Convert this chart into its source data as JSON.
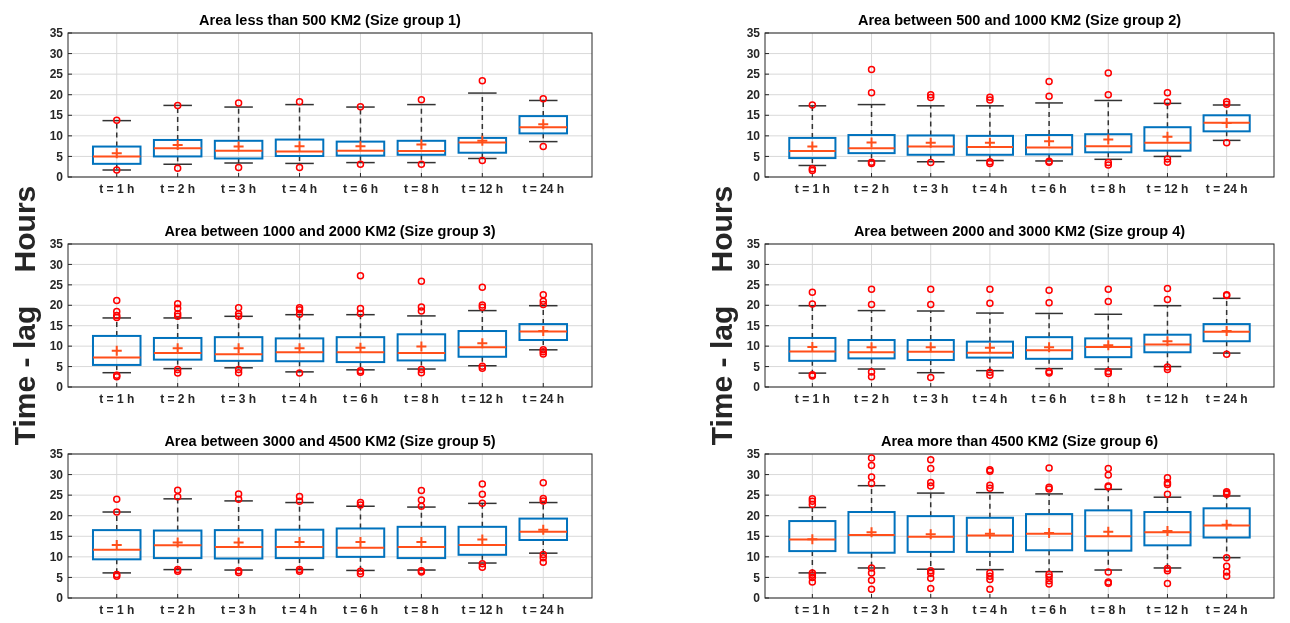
{
  "chart_data": [
    {
      "type": "box",
      "title": "Area less than 500 KM2  (Size group 1)",
      "categories": [
        "t = 1 h",
        "t = 2 h",
        "t = 3 h",
        "t = 4 h",
        "t = 6 h",
        "t = 8 h",
        "t = 12 h",
        "t = 24 h"
      ],
      "ylim": [
        0,
        35
      ],
      "yticks": [
        0,
        5,
        10,
        15,
        20,
        25,
        30,
        35
      ],
      "grid": true,
      "boxes": [
        {
          "low": 1.7,
          "q1": 3.2,
          "median": 5.0,
          "q3": 7.4,
          "high": 13.7,
          "mean": 5.8,
          "outliers": [
            13.8,
            1.7
          ]
        },
        {
          "low": 3.1,
          "q1": 5.0,
          "median": 7.0,
          "q3": 9.0,
          "high": 17.4,
          "mean": 7.8,
          "outliers": [
            17.4,
            2.1
          ]
        },
        {
          "low": 3.4,
          "q1": 4.5,
          "median": 6.4,
          "q3": 8.8,
          "high": 17.0,
          "mean": 7.4,
          "outliers": [
            18.0,
            2.3
          ]
        },
        {
          "low": 3.3,
          "q1": 5.1,
          "median": 6.2,
          "q3": 9.1,
          "high": 17.6,
          "mean": 7.5,
          "outliers": [
            18.3,
            2.3
          ]
        },
        {
          "low": 3.5,
          "q1": 5.2,
          "median": 6.4,
          "q3": 8.6,
          "high": 17.0,
          "mean": 7.5,
          "outliers": [
            17.1,
            3.1
          ]
        },
        {
          "low": 3.5,
          "q1": 5.4,
          "median": 6.3,
          "q3": 8.8,
          "high": 17.6,
          "mean": 7.9,
          "outliers": [
            18.8,
            3.1
          ]
        },
        {
          "low": 4.5,
          "q1": 5.9,
          "median": 8.4,
          "q3": 9.5,
          "high": 20.4,
          "mean": 8.8,
          "outliers": [
            23.4,
            4.0
          ]
        },
        {
          "low": 8.6,
          "q1": 10.6,
          "median": 12.1,
          "q3": 14.8,
          "high": 18.6,
          "mean": 12.8,
          "outliers": [
            19.0,
            7.4
          ]
        }
      ]
    },
    {
      "type": "box",
      "title": "Area between 500 and 1000 KM2  (Size group 2)",
      "categories": [
        "t = 1 h",
        "t = 2 h",
        "t = 3 h",
        "t = 4 h",
        "t = 6 h",
        "t = 8 h",
        "t = 12 h",
        "t = 24 h"
      ],
      "ylim": [
        0,
        35
      ],
      "yticks": [
        0,
        5,
        10,
        15,
        20,
        25,
        30,
        35
      ],
      "grid": true,
      "boxes": [
        {
          "low": 2.8,
          "q1": 4.6,
          "median": 6.3,
          "q3": 9.5,
          "high": 17.3,
          "mean": 7.4,
          "outliers": [
            17.5,
            2.0,
            1.6
          ]
        },
        {
          "low": 3.9,
          "q1": 5.8,
          "median": 7.0,
          "q3": 10.2,
          "high": 17.6,
          "mean": 8.4,
          "outliers": [
            26.1,
            20.5,
            3.6,
            3.3
          ]
        },
        {
          "low": 3.7,
          "q1": 5.4,
          "median": 7.4,
          "q3": 10.1,
          "high": 17.3,
          "mean": 8.3,
          "outliers": [
            20.0,
            19.3,
            3.5
          ]
        },
        {
          "low": 4.0,
          "q1": 5.4,
          "median": 7.3,
          "q3": 10.0,
          "high": 17.3,
          "mean": 8.3,
          "outliers": [
            19.4,
            18.7,
            3.7,
            3.3
          ]
        },
        {
          "low": 3.9,
          "q1": 5.5,
          "median": 7.2,
          "q3": 10.2,
          "high": 18.0,
          "mean": 8.7,
          "outliers": [
            23.2,
            19.6,
            3.8,
            3.6
          ]
        },
        {
          "low": 4.3,
          "q1": 6.0,
          "median": 7.5,
          "q3": 10.4,
          "high": 18.6,
          "mean": 9.1,
          "outliers": [
            25.3,
            20.0,
            3.5,
            2.9
          ]
        },
        {
          "low": 5.0,
          "q1": 6.4,
          "median": 8.3,
          "q3": 12.1,
          "high": 17.9,
          "mean": 9.8,
          "outliers": [
            20.5,
            18.2,
            4.4,
            3.6
          ]
        },
        {
          "low": 8.9,
          "q1": 11.1,
          "median": 13.2,
          "q3": 15.0,
          "high": 17.5,
          "mean": 13.1,
          "outliers": [
            18.3,
            17.7,
            8.3
          ]
        }
      ]
    },
    {
      "type": "box",
      "title": "Area between 1000 and 2000 KM2  (Size group 3)",
      "ylabel": "Time - lag    Hours",
      "categories": [
        "t = 1 h",
        "t = 2 h",
        "t = 3 h",
        "t = 4 h",
        "t = 6 h",
        "t = 8 h",
        "t = 12 h",
        "t = 24 h"
      ],
      "ylim": [
        0,
        35
      ],
      "yticks": [
        0,
        5,
        10,
        15,
        20,
        25,
        30,
        35
      ],
      "grid": true,
      "boxes": [
        {
          "low": 3.5,
          "q1": 5.4,
          "median": 7.2,
          "q3": 12.5,
          "high": 16.9,
          "mean": 8.9,
          "outliers": [
            21.2,
            18.5,
            17.5,
            17.0,
            2.9,
            2.5
          ]
        },
        {
          "low": 4.5,
          "q1": 6.7,
          "median": 8.3,
          "q3": 12.0,
          "high": 16.9,
          "mean": 9.5,
          "outliers": [
            20.4,
            19.3,
            17.9,
            17.3,
            4.3,
            3.4
          ]
        },
        {
          "low": 4.7,
          "q1": 6.4,
          "median": 8.0,
          "q3": 12.2,
          "high": 17.3,
          "mean": 9.5,
          "outliers": [
            19.4,
            17.9,
            17.3,
            4.3,
            3.5
          ]
        },
        {
          "low": 3.7,
          "q1": 6.3,
          "median": 8.5,
          "q3": 11.9,
          "high": 17.7,
          "mean": 9.5,
          "outliers": [
            19.4,
            18.9,
            17.8,
            3.4
          ]
        },
        {
          "low": 4.2,
          "q1": 6.1,
          "median": 8.5,
          "q3": 12.2,
          "high": 17.7,
          "mean": 9.6,
          "outliers": [
            27.2,
            19.2,
            18.0,
            4.0,
            3.6
          ]
        },
        {
          "low": 4.4,
          "q1": 6.5,
          "median": 8.3,
          "q3": 12.9,
          "high": 17.4,
          "mean": 9.9,
          "outliers": [
            25.9,
            19.6,
            18.6,
            4.3,
            3.5
          ]
        },
        {
          "low": 5.2,
          "q1": 7.4,
          "median": 9.7,
          "q3": 13.7,
          "high": 18.7,
          "mean": 10.7,
          "outliers": [
            24.4,
            20.1,
            19.5,
            5.1,
            4.6
          ]
        },
        {
          "low": 9.1,
          "q1": 11.5,
          "median": 13.6,
          "q3": 15.4,
          "high": 19.9,
          "mean": 13.7,
          "outliers": [
            22.6,
            21.0,
            20.2,
            9.1,
            8.6,
            8.1
          ]
        }
      ]
    },
    {
      "type": "box",
      "title": "Area between 2000 and 3000 KM2  (Size group 4)",
      "ylabel": "Time - lag    Hours",
      "categories": [
        "t = 1 h",
        "t = 2 h",
        "t = 3 h",
        "t = 4 h",
        "t = 6 h",
        "t = 8 h",
        "t = 12 h",
        "t = 24 h"
      ],
      "ylim": [
        0,
        35
      ],
      "yticks": [
        0,
        5,
        10,
        15,
        20,
        25,
        30,
        35
      ],
      "grid": true,
      "boxes": [
        {
          "low": 3.4,
          "q1": 6.4,
          "median": 8.7,
          "q3": 12.0,
          "high": 19.9,
          "mean": 9.8,
          "outliers": [
            23.2,
            20.3,
            3.0,
            2.7
          ]
        },
        {
          "low": 4.4,
          "q1": 7.0,
          "median": 8.5,
          "q3": 11.5,
          "high": 18.7,
          "mean": 9.7,
          "outliers": [
            23.9,
            20.2,
            3.7,
            2.5
          ]
        },
        {
          "low": 3.5,
          "q1": 6.6,
          "median": 8.6,
          "q3": 11.5,
          "high": 18.6,
          "mean": 9.7,
          "outliers": [
            23.9,
            20.2,
            2.3
          ]
        },
        {
          "low": 4.0,
          "q1": 7.2,
          "median": 8.4,
          "q3": 11.1,
          "high": 18.1,
          "mean": 9.6,
          "outliers": [
            23.9,
            20.5,
            3.6,
            2.9
          ]
        },
        {
          "low": 4.5,
          "q1": 6.9,
          "median": 9.0,
          "q3": 12.2,
          "high": 18.0,
          "mean": 9.7,
          "outliers": [
            23.7,
            20.6,
            3.8,
            3.4
          ]
        },
        {
          "low": 4.4,
          "q1": 7.3,
          "median": 9.8,
          "q3": 11.9,
          "high": 17.8,
          "mean": 10.2,
          "outliers": [
            23.9,
            20.9,
            3.8,
            3.3
          ]
        },
        {
          "low": 5.0,
          "q1": 8.5,
          "median": 10.4,
          "q3": 12.8,
          "high": 19.9,
          "mean": 11.2,
          "outliers": [
            24.1,
            21.4,
            4.9,
            4.3
          ]
        },
        {
          "low": 8.3,
          "q1": 11.2,
          "median": 13.5,
          "q3": 15.4,
          "high": 21.7,
          "mean": 13.7,
          "outliers": [
            22.6,
            22.4,
            8.0
          ]
        }
      ]
    },
    {
      "type": "box",
      "title": "Area between 3000 and 4500 KM2  (Size group 5)",
      "categories": [
        "t = 1 h",
        "t = 2 h",
        "t = 3 h",
        "t = 4 h",
        "t = 6 h",
        "t = 8 h",
        "t = 12 h",
        "t = 24 h"
      ],
      "ylim": [
        0,
        35
      ],
      "yticks": [
        0,
        5,
        10,
        15,
        20,
        25,
        30,
        35
      ],
      "grid": true,
      "boxes": [
        {
          "low": 6.1,
          "q1": 9.4,
          "median": 11.7,
          "q3": 16.5,
          "high": 20.9,
          "mean": 12.9,
          "outliers": [
            24.0,
            20.9,
            5.7,
            5.3
          ]
        },
        {
          "low": 6.9,
          "q1": 9.7,
          "median": 12.8,
          "q3": 16.4,
          "high": 24.1,
          "mean": 13.5,
          "outliers": [
            26.2,
            24.6,
            6.9,
            6.5
          ]
        },
        {
          "low": 6.8,
          "q1": 9.6,
          "median": 12.4,
          "q3": 16.5,
          "high": 23.6,
          "mean": 13.5,
          "outliers": [
            25.3,
            24.0,
            6.6,
            6.2
          ]
        },
        {
          "low": 6.9,
          "q1": 9.7,
          "median": 12.4,
          "q3": 16.6,
          "high": 23.2,
          "mean": 13.6,
          "outliers": [
            24.7,
            23.5,
            6.9,
            6.5
          ]
        },
        {
          "low": 6.7,
          "q1": 10.0,
          "median": 12.2,
          "q3": 16.9,
          "high": 22.3,
          "mean": 13.6,
          "outliers": [
            23.2,
            22.6,
            6.5,
            5.9
          ]
        },
        {
          "low": 6.8,
          "q1": 9.7,
          "median": 12.4,
          "q3": 17.3,
          "high": 22.1,
          "mean": 13.6,
          "outliers": [
            26.1,
            23.8,
            22.3,
            6.6,
            6.3
          ]
        },
        {
          "low": 8.5,
          "q1": 10.5,
          "median": 12.9,
          "q3": 17.3,
          "high": 23.0,
          "mean": 14.2,
          "outliers": [
            27.7,
            25.2,
            23.0,
            8.3,
            7.5
          ]
        },
        {
          "low": 10.9,
          "q1": 14.1,
          "median": 16.1,
          "q3": 19.3,
          "high": 23.2,
          "mean": 16.6,
          "outliers": [
            28.0,
            24.2,
            23.6,
            10.6,
            9.8,
            8.7
          ]
        }
      ]
    },
    {
      "type": "box",
      "title": "Area more than 4500 KM2  (Size group 6)",
      "categories": [
        "t = 1 h",
        "t = 2 h",
        "t = 3 h",
        "t = 4 h",
        "t = 6 h",
        "t = 8 h",
        "t = 12 h",
        "t = 24 h"
      ],
      "ylim": [
        0,
        35
      ],
      "yticks": [
        0,
        5,
        10,
        15,
        20,
        25,
        30,
        35
      ],
      "grid": true,
      "boxes": [
        {
          "low": 6.1,
          "q1": 11.4,
          "median": 14.2,
          "q3": 18.7,
          "high": 22.0,
          "mean": 14.3,
          "outliers": [
            24.1,
            23.5,
            22.7,
            6.1,
            5.6,
            5.0,
            3.9
          ]
        },
        {
          "low": 7.3,
          "q1": 11.0,
          "median": 15.3,
          "q3": 20.9,
          "high": 27.3,
          "mean": 16.0,
          "outliers": [
            34.0,
            32.2,
            29.4,
            27.8,
            7.3,
            6.1,
            4.3,
            2.1
          ]
        },
        {
          "low": 7.0,
          "q1": 11.2,
          "median": 14.9,
          "q3": 19.9,
          "high": 25.5,
          "mean": 15.5,
          "outliers": [
            33.6,
            31.5,
            28.1,
            27.2,
            6.6,
            6.0,
            4.8,
            2.3
          ]
        },
        {
          "low": 6.9,
          "q1": 11.2,
          "median": 15.2,
          "q3": 19.5,
          "high": 25.6,
          "mean": 15.6,
          "outliers": [
            31.2,
            30.8,
            27.4,
            26.7,
            6.1,
            5.3,
            4.5,
            2.1
          ]
        },
        {
          "low": 6.4,
          "q1": 11.6,
          "median": 15.6,
          "q3": 20.4,
          "high": 25.3,
          "mean": 15.8,
          "outliers": [
            31.6,
            26.9,
            26.5,
            5.8,
            5.1,
            4.2,
            3.4
          ]
        },
        {
          "low": 6.8,
          "q1": 11.5,
          "median": 15.0,
          "q3": 21.3,
          "high": 26.4,
          "mean": 16.1,
          "outliers": [
            31.5,
            29.9,
            27.2,
            27.0,
            6.3,
            3.9,
            3.6
          ]
        },
        {
          "low": 7.3,
          "q1": 12.8,
          "median": 16.0,
          "q3": 20.9,
          "high": 24.5,
          "mean": 16.3,
          "outliers": [
            29.2,
            28.0,
            27.6,
            25.2,
            7.2,
            6.6,
            3.5
          ]
        },
        {
          "low": 9.8,
          "q1": 14.7,
          "median": 17.6,
          "q3": 21.8,
          "high": 24.8,
          "mean": 17.8,
          "outliers": [
            25.8,
            25.5,
            25.2,
            9.8,
            7.7,
            6.3,
            5.3
          ]
        }
      ]
    }
  ]
}
